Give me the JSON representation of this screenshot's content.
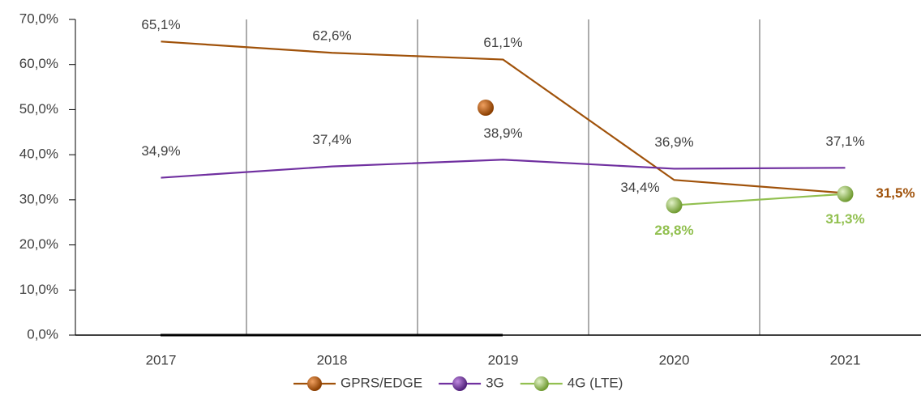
{
  "chart_data": {
    "type": "line",
    "categories": [
      "2017",
      "2018",
      "2019",
      "2020",
      "2021"
    ],
    "series": [
      {
        "name": "GPRS/EDGE",
        "color": "#a0520a",
        "values": [
          65.1,
          62.6,
          61.1,
          34.4,
          31.5
        ],
        "value_labels": [
          "65,1%",
          "62,6%",
          "61,1%",
          "34,4%",
          "31,5%"
        ]
      },
      {
        "name": "3G",
        "color": "#7030a0",
        "values": [
          34.9,
          37.4,
          38.9,
          36.9,
          37.1
        ],
        "value_labels": [
          "34,9%",
          "37,4%",
          "38,9%",
          "36,9%",
          "37,1%"
        ]
      },
      {
        "name": "4G (LTE)",
        "color": "#92c050",
        "values": [
          null,
          null,
          null,
          28.8,
          31.3
        ],
        "value_labels": [
          null,
          null,
          null,
          "28,8%",
          "31,3%"
        ]
      }
    ],
    "ylim": [
      0,
      70
    ],
    "yticks": [
      {
        "value": 0,
        "label": "0,0%"
      },
      {
        "value": 10,
        "label": "10,0%"
      },
      {
        "value": 20,
        "label": "20,0%"
      },
      {
        "value": 30,
        "label": "30,0%"
      },
      {
        "value": 40,
        "label": "40,0%"
      },
      {
        "value": 50,
        "label": "50,0%"
      },
      {
        "value": 60,
        "label": "60,0%"
      },
      {
        "value": 70,
        "label": "70,0%"
      }
    ],
    "legend": "bottom"
  }
}
